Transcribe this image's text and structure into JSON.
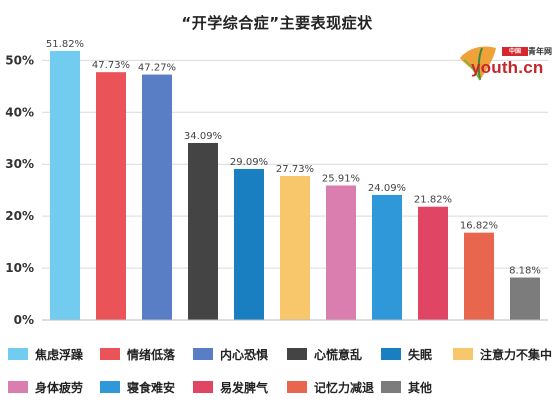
{
  "chart_data": {
    "type": "bar",
    "title": "“开学综合症”主要表现症状",
    "categories": [
      "焦虑浮躁",
      "情绪低落",
      "内心恐惧",
      "心慌意乱",
      "失眠",
      "注意力不集中",
      "身体疲劳",
      "寝食难安",
      "易发脾气",
      "记忆力减退",
      "其他"
    ],
    "values": [
      51.82,
      47.73,
      47.27,
      34.09,
      29.09,
      27.73,
      25.91,
      24.09,
      21.82,
      16.82,
      8.18
    ],
    "value_labels": [
      "51.82%",
      "47.73%",
      "47.27%",
      "34.09%",
      "29.09%",
      "27.73%",
      "25.91%",
      "24.09%",
      "21.82%",
      "16.82%",
      "8.18%"
    ],
    "colors": [
      "#72CCEF",
      "#EA5458",
      "#5A7EC6",
      "#444444",
      "#1A7FC1",
      "#F8C76B",
      "#D97EAE",
      "#2E98D8",
      "#E04563",
      "#E8664E",
      "#7C7C7C"
    ],
    "ylim": [
      0,
      52
    ],
    "yticks": [
      0,
      10,
      20,
      30,
      40,
      50
    ],
    "ytick_labels": [
      "0%",
      "10%",
      "20%",
      "30%",
      "40%",
      "50%"
    ],
    "xlabel": "",
    "ylabel": "",
    "grid": true,
    "legend_position": "bottom"
  },
  "logo": {
    "badge": "中国",
    "site": "青年网",
    "word": "youth.cn",
    "colors": {
      "primary": "#C3272B",
      "leaf": "#F0A23A"
    }
  }
}
